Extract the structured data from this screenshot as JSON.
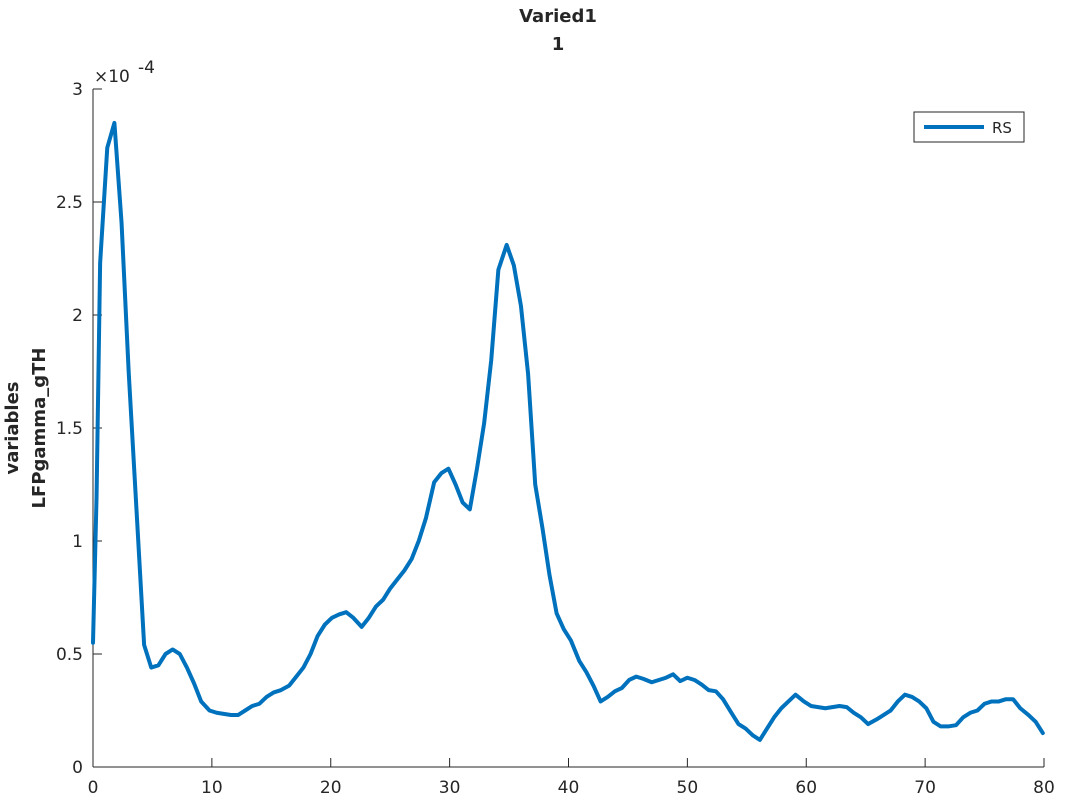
{
  "chart_data": {
    "type": "line",
    "title": [
      "Varied1",
      "1"
    ],
    "xlabel": "",
    "ylabel": [
      "variables",
      "LFPgamma_gTH"
    ],
    "xlim": [
      0,
      80
    ],
    "ylim": [
      0,
      3
    ],
    "y_exponent_label": "×10",
    "y_exponent_power": "-4",
    "xticks": [
      0,
      10,
      20,
      30,
      40,
      50,
      60,
      70,
      80
    ],
    "xtick_labels": [
      "0",
      "10",
      "20",
      "30",
      "40",
      "50",
      "60",
      "70",
      "80"
    ],
    "yticks": [
      0,
      0.5,
      1,
      1.5,
      2,
      2.5,
      3
    ],
    "ytick_labels": [
      "0",
      "0.5",
      "1",
      "1.5",
      "2",
      "2.5",
      "3"
    ],
    "grid": false,
    "legend": "top-right",
    "series": [
      {
        "name": "RS",
        "color": "#0072BD",
        "x": [
          0,
          0.3,
          0.6,
          1.2,
          1.8,
          2.4,
          3.0,
          3.7,
          4.3,
          4.9,
          5.5,
          6.1,
          6.7,
          7.3,
          7.9,
          8.5,
          9.1,
          9.8,
          10.4,
          11.0,
          11.6,
          12.2,
          12.8,
          13.4,
          14.0,
          14.6,
          15.2,
          15.8,
          16.5,
          17.1,
          17.7,
          18.3,
          18.9,
          19.5,
          20.1,
          20.7,
          21.3,
          21.9,
          22.6,
          23.2,
          23.8,
          24.4,
          25.0,
          25.6,
          26.2,
          26.8,
          27.4,
          28.0,
          28.7,
          29.3,
          29.9,
          30.5,
          31.1,
          31.7,
          32.3,
          32.9,
          33.5,
          34.1,
          34.8,
          35.4,
          36.0,
          36.6,
          37.2,
          37.8,
          38.4,
          39.0,
          39.6,
          40.2,
          40.9,
          41.5,
          42.1,
          42.7,
          43.3,
          43.9,
          44.5,
          45.1,
          45.7,
          46.3,
          47.0,
          47.6,
          48.2,
          48.8,
          49.4,
          50.0,
          50.6,
          51.2,
          51.8,
          52.4,
          53.0,
          53.7,
          54.3,
          54.9,
          55.5,
          56.1,
          56.7,
          57.3,
          57.9,
          58.5,
          59.1,
          59.8,
          60.4,
          61.0,
          61.6,
          62.2,
          62.8,
          63.4,
          64.0,
          64.6,
          65.2,
          65.9,
          66.5,
          67.1,
          67.7,
          68.3,
          68.9,
          69.5,
          70.1,
          70.7,
          71.3,
          72.0,
          72.6,
          73.2,
          73.8,
          74.4,
          75.0,
          75.6,
          76.2,
          76.8,
          77.4,
          78.0,
          78.7,
          79.3,
          79.9
        ],
        "y": [
          0.55,
          1.2,
          2.23,
          2.74,
          2.85,
          2.41,
          1.75,
          1.1,
          0.54,
          0.44,
          0.45,
          0.5,
          0.52,
          0.5,
          0.44,
          0.37,
          0.29,
          0.25,
          0.24,
          0.235,
          0.23,
          0.23,
          0.25,
          0.27,
          0.28,
          0.31,
          0.33,
          0.34,
          0.36,
          0.4,
          0.44,
          0.5,
          0.58,
          0.63,
          0.66,
          0.675,
          0.685,
          0.66,
          0.62,
          0.66,
          0.71,
          0.74,
          0.79,
          0.83,
          0.87,
          0.92,
          1.0,
          1.1,
          1.26,
          1.3,
          1.32,
          1.25,
          1.17,
          1.14,
          1.32,
          1.52,
          1.8,
          2.2,
          2.31,
          2.22,
          2.04,
          1.74,
          1.25,
          1.06,
          0.85,
          0.68,
          0.61,
          0.56,
          0.47,
          0.42,
          0.36,
          0.29,
          0.31,
          0.335,
          0.35,
          0.385,
          0.4,
          0.39,
          0.375,
          0.385,
          0.395,
          0.41,
          0.38,
          0.395,
          0.385,
          0.365,
          0.34,
          0.335,
          0.3,
          0.24,
          0.19,
          0.17,
          0.14,
          0.12,
          0.17,
          0.22,
          0.26,
          0.29,
          0.32,
          0.29,
          0.27,
          0.265,
          0.26,
          0.265,
          0.27,
          0.265,
          0.24,
          0.22,
          0.19,
          0.21,
          0.23,
          0.25,
          0.29,
          0.32,
          0.31,
          0.29,
          0.26,
          0.2,
          0.18,
          0.18,
          0.185,
          0.22,
          0.24,
          0.25,
          0.28,
          0.29,
          0.29,
          0.3,
          0.3,
          0.26,
          0.23,
          0.2,
          0.15
        ]
      }
    ]
  }
}
